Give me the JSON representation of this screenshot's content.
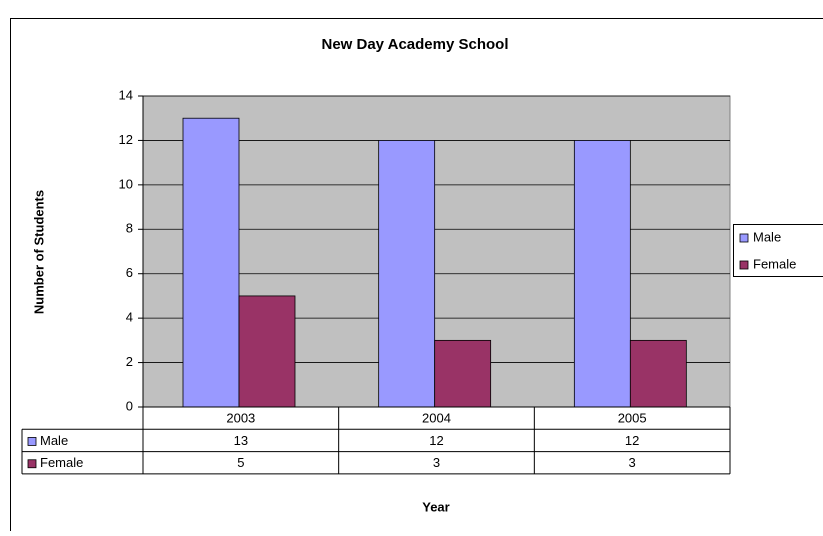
{
  "chart_data": {
    "type": "bar",
    "title": "New Day Academy School",
    "x_label": "Year",
    "y_label": "Number of Students",
    "categories": [
      "2003",
      "2004",
      "2005"
    ],
    "series": [
      {
        "name": "Male",
        "color": "#9999ff",
        "values": [
          13,
          12,
          12
        ]
      },
      {
        "name": "Female",
        "color": "#993366",
        "values": [
          5,
          3,
          3
        ]
      }
    ],
    "ylim": [
      0,
      14
    ],
    "yticks": [
      0,
      2,
      4,
      6,
      8,
      10,
      12,
      14
    ],
    "grid": true,
    "legend": "right"
  }
}
